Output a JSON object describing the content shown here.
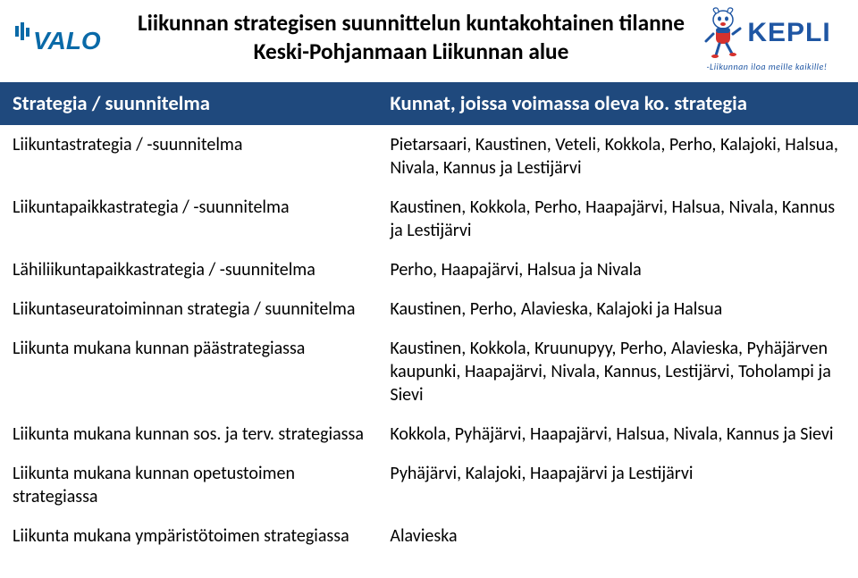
{
  "colors": {
    "header_bg": "#1f497d",
    "header_text": "#ffffff",
    "body_text": "#000000",
    "page_bg": "#ffffff",
    "valo_blue": "#0a6aa8",
    "kepli_blue": "#1f56a3",
    "kepli_red": "#d6322e"
  },
  "typography": {
    "title_fontsize_pt": 19,
    "th_fontsize_pt": 17,
    "td_fontsize_pt": 15,
    "font_family": "Calibri"
  },
  "logos": {
    "left_text": "VALO",
    "right_text": "KEPLI",
    "right_tagline": "-Liikunnan iloa meille kaikille!"
  },
  "title": {
    "line1": "Liikunnan strategisen suunnittelun kuntakohtainen tilanne",
    "line2": "Keski-Pohjanmaan Liikunnan alue"
  },
  "table": {
    "header": {
      "left": "Strategia / suunnitelma",
      "right": "Kunnat, joissa voimassa oleva ko. strategia"
    },
    "rows": [
      {
        "left": "Liikuntastrategia / -suunnitelma",
        "right": "Pietarsaari, Kaustinen, Veteli, Kokkola, Perho, Kalajoki, Halsua, Nivala, Kannus ja Lestijärvi"
      },
      {
        "left": "Liikuntapaikkastrategia / -suunnitelma",
        "right": "Kaustinen, Kokkola, Perho, Haapajärvi, Halsua, Nivala, Kannus ja Lestijärvi"
      },
      {
        "left": "Lähiliikuntapaikkastrategia / -suunnitelma",
        "right": "Perho, Haapajärvi, Halsua ja Nivala"
      },
      {
        "left": "Liikuntaseuratoiminnan strategia / suunnitelma",
        "right": "Kaustinen, Perho, Alavieska, Kalajoki ja Halsua"
      },
      {
        "left": "Liikunta mukana kunnan päästrategiassa",
        "right": "Kaustinen, Kokkola, Kruunupyy, Perho, Alavieska, Pyhäjärven kaupunki, Haapajärvi, Nivala, Kannus, Lestijärvi, Toholampi ja Sievi"
      },
      {
        "left": "Liikunta mukana kunnan sos. ja terv. strategiassa",
        "right": "Kokkola, Pyhäjärvi, Haapajärvi, Halsua, Nivala, Kannus ja Sievi"
      },
      {
        "left": "Liikunta mukana kunnan opetustoimen strategiassa",
        "right": "Pyhäjärvi, Kalajoki, Haapajärvi ja Lestijärvi"
      },
      {
        "left": "Liikunta mukana  ympäristötoimen strategiassa",
        "right": "Alavieska"
      }
    ]
  }
}
